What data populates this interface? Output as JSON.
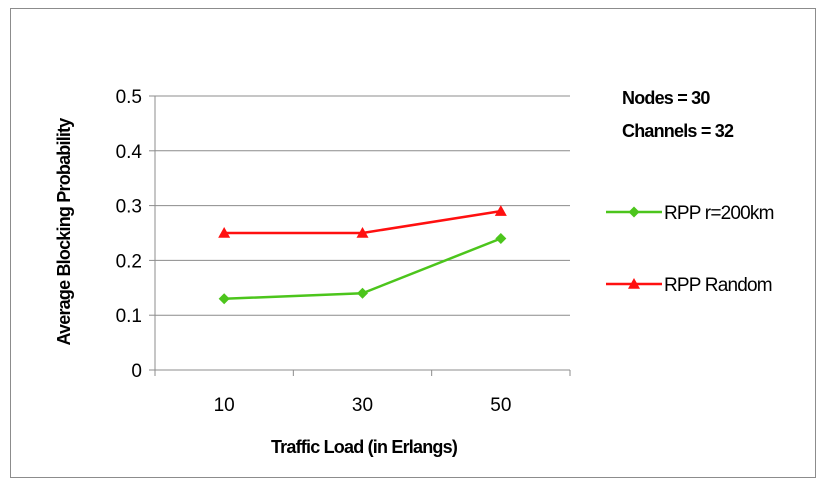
{
  "chart_data": {
    "type": "line",
    "categories": [
      "10",
      "30",
      "50"
    ],
    "series": [
      {
        "name": "RPP r=200km",
        "values": [
          0.13,
          0.14,
          0.24
        ],
        "color": "#4cc51c",
        "marker": "diamond"
      },
      {
        "name": "RPP Random",
        "values": [
          0.25,
          0.25,
          0.29
        ],
        "color": "#ff1010",
        "marker": "triangle"
      }
    ],
    "title": "",
    "xlabel": "Traffic Load (in Erlangs)",
    "ylabel": "Average Blocking Probability",
    "ylim": [
      0,
      0.5
    ],
    "yticks": [
      "0",
      "0.1",
      "0.2",
      "0.3",
      "0.4",
      "0.5"
    ],
    "grid": true,
    "legend_position": "right",
    "annotations": [
      "Nodes = 30",
      "Channels = 32"
    ]
  }
}
